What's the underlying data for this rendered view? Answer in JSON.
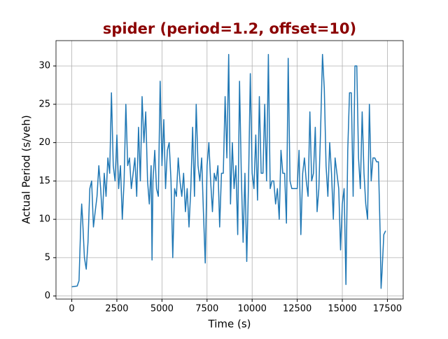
{
  "chart_data": {
    "type": "line",
    "title": "spider (period=1.2, offset=10)",
    "xlabel": "Time (s)",
    "ylabel": "Actual Period (s/veh)",
    "xlim": [
      -875,
      18375
    ],
    "ylim": [
      -0.4,
      33.3
    ],
    "xticks": [
      0,
      2500,
      5000,
      7500,
      10000,
      12500,
      15000,
      17500
    ],
    "yticks": [
      0,
      5,
      10,
      15,
      20,
      25,
      30
    ],
    "grid": true,
    "x": [
      0,
      300,
      400,
      500,
      550,
      600,
      700,
      800,
      900,
      1000,
      1100,
      1200,
      1300,
      1400,
      1500,
      1600,
      1700,
      1800,
      1900,
      2000,
      2100,
      2200,
      2300,
      2400,
      2500,
      2600,
      2700,
      2800,
      2900,
      3000,
      3100,
      3200,
      3300,
      3400,
      3500,
      3600,
      3700,
      3800,
      3900,
      4000,
      4100,
      4200,
      4300,
      4400,
      4450,
      4500,
      4600,
      4700,
      4800,
      4900,
      5000,
      5100,
      5200,
      5300,
      5400,
      5500,
      5600,
      5700,
      5800,
      5900,
      6000,
      6100,
      6200,
      6300,
      6400,
      6500,
      6600,
      6700,
      6800,
      6900,
      7000,
      7100,
      7200,
      7300,
      7400,
      7500,
      7600,
      7700,
      7800,
      7900,
      8000,
      8100,
      8200,
      8300,
      8400,
      8500,
      8600,
      8700,
      8800,
      8900,
      9000,
      9100,
      9200,
      9300,
      9400,
      9500,
      9600,
      9700,
      9800,
      9900,
      10000,
      10100,
      10200,
      10300,
      10400,
      10500,
      10600,
      10700,
      10800,
      10900,
      11000,
      11100,
      11200,
      11300,
      11400,
      11500,
      11600,
      11700,
      11800,
      11900,
      12000,
      12100,
      12200,
      12300,
      12400,
      12500,
      12600,
      12700,
      12800,
      12900,
      13000,
      13100,
      13200,
      13300,
      13400,
      13500,
      13600,
      13700,
      13800,
      13900,
      14000,
      14100,
      14200,
      14300,
      14400,
      14500,
      14600,
      14700,
      14800,
      14900,
      15000,
      15100,
      15200,
      15300,
      15400,
      15500,
      15600,
      15700,
      15800,
      15900,
      16000,
      16100,
      16200,
      16300,
      16400,
      16500,
      16600,
      16700,
      16800,
      16900,
      17000,
      17100,
      17150,
      17200,
      17300,
      17400
    ],
    "series": [
      {
        "name": "spider",
        "color": "#1f77b4",
        "values": [
          1.2,
          1.3,
          2,
          9.5,
          12,
          10,
          5,
          3.5,
          7,
          14,
          15,
          9,
          11,
          13,
          17,
          14,
          10,
          16,
          13,
          18,
          16,
          26.5,
          17,
          15,
          21,
          14,
          17,
          10,
          15,
          25,
          17,
          18,
          14,
          16,
          18,
          13,
          22,
          15,
          26,
          20,
          24,
          15,
          12,
          17,
          4.7,
          15,
          19,
          14,
          13,
          28,
          17,
          23,
          14,
          19,
          20,
          15,
          5,
          14,
          13,
          18,
          15,
          13,
          16,
          11,
          14,
          9,
          14,
          22,
          13,
          25,
          17,
          15,
          18,
          11,
          4.3,
          17,
          20,
          15,
          11,
          16,
          15,
          17,
          9,
          16,
          16,
          26,
          18,
          31.5,
          12,
          20,
          14,
          17,
          8,
          28,
          16,
          7,
          16,
          4.5,
          15,
          29,
          16,
          14,
          21,
          12.5,
          26,
          16,
          16,
          25,
          15,
          31.5,
          14,
          15,
          15,
          12,
          14,
          10,
          19,
          16,
          16,
          9.5,
          31,
          15,
          14,
          14,
          14,
          14,
          19,
          8,
          16,
          18,
          15,
          13,
          24,
          15,
          16,
          22,
          11,
          14,
          22,
          31.5,
          27,
          17,
          13,
          20,
          16,
          10,
          18,
          16,
          14,
          6,
          12,
          14,
          1.5,
          19,
          26.5,
          26.5,
          13,
          30,
          30,
          18,
          14,
          24,
          16,
          12,
          10,
          25,
          15,
          18,
          18,
          17.5,
          17.5,
          8,
          1,
          3,
          8,
          8.5
        ]
      }
    ]
  }
}
